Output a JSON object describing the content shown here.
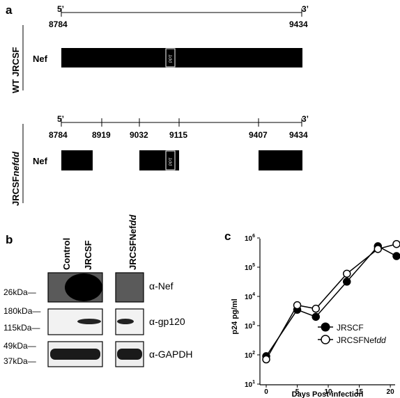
{
  "panel_a": {
    "label": "a",
    "wt": {
      "end5": "5’",
      "end3": "3’",
      "positions": [
        "8784",
        "9434"
      ],
      "group_label": "WT JRCSF",
      "row_label": "Nef",
      "ppt": "PPT"
    },
    "mut": {
      "end5": "5’",
      "end3": "3’",
      "positions": [
        "8784",
        "8919",
        "9032",
        "9115",
        "9407",
        "9434"
      ],
      "group_label_main": "JRCSF",
      "group_label_italic": "nefdd",
      "row_label": "Nef",
      "ppt": "PPT"
    }
  },
  "panel_b": {
    "label": "b",
    "lanes": [
      "Control",
      "JRCSF",
      "JRCSFNef",
      "dd"
    ],
    "markers": [
      "26kDa—",
      "180kDa—",
      "115kDa—",
      "49kDa—",
      "37kDa—"
    ],
    "antibodies": [
      "α-Nef",
      "α-gp120",
      "α-GAPDH"
    ]
  },
  "panel_c": {
    "label": "c",
    "ylabel": "p24 pg/ml",
    "xlabel": "Days Post-infection",
    "x_ticks": [
      "0",
      "5",
      "10",
      "15",
      "20"
    ],
    "y_ticks": [
      {
        "base": "10",
        "exp": "1"
      },
      {
        "base": "10",
        "exp": "2"
      },
      {
        "base": "10",
        "exp": "3"
      },
      {
        "base": "10",
        "exp": "4"
      },
      {
        "base": "10",
        "exp": "5"
      },
      {
        "base": "10",
        "exp": "6"
      }
    ],
    "legend": [
      {
        "name": "JRSCF",
        "italic_suffix": ""
      },
      {
        "name": "JRCSFNef",
        "italic_suffix": "dd"
      }
    ]
  },
  "chart_data": {
    "type": "line",
    "xlabel": "Days Post-infection",
    "ylabel": "p24 pg/ml",
    "xlim": [
      0,
      21
    ],
    "ylim": [
      10,
      1000000
    ],
    "y_scale": "log",
    "grid": false,
    "legend_position": "bottom-right",
    "series": [
      {
        "name": "JRSCF",
        "marker": "filled-circle",
        "x": [
          0,
          5,
          8,
          13,
          18,
          21
        ],
        "y": [
          90,
          3500,
          2000,
          32000,
          520000,
          240000
        ]
      },
      {
        "name": "JRCSFNefdd",
        "marker": "open-circle",
        "x": [
          0,
          5,
          8,
          13,
          18,
          21
        ],
        "y": [
          70,
          5000,
          3800,
          60000,
          420000,
          620000
        ]
      }
    ]
  }
}
